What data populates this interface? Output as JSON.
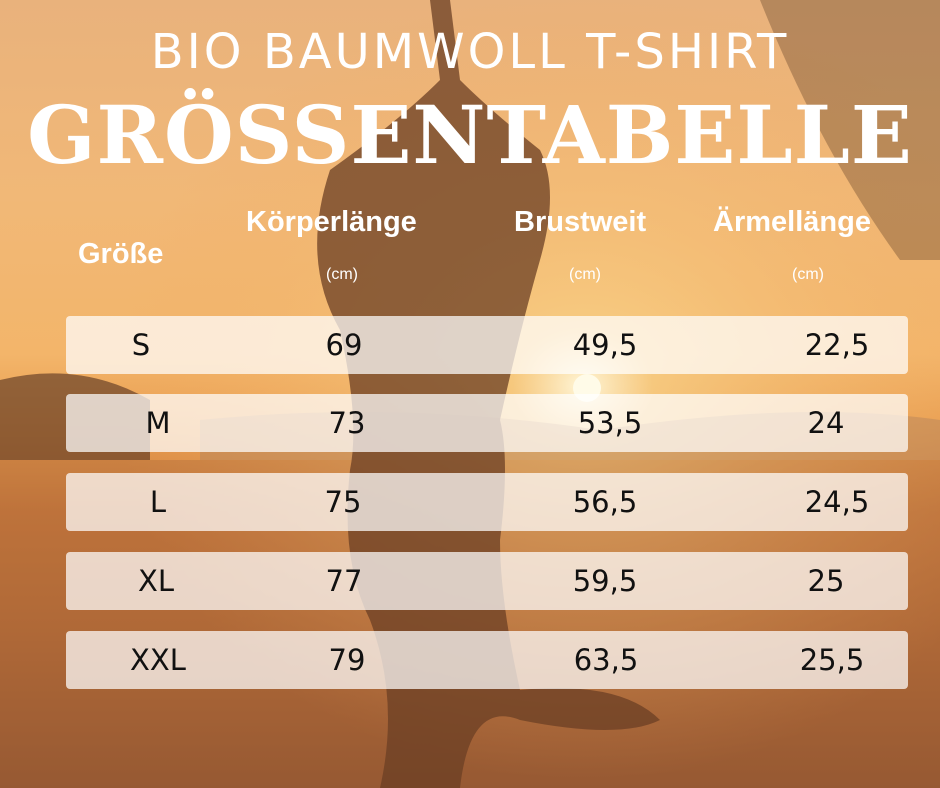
{
  "title": "BIO BAUMWOLL T-SHIRT",
  "subtitle": "GRÖSSENTABELLE",
  "columns": [
    {
      "label": "Größe",
      "unit": ""
    },
    {
      "label": "Körperlänge",
      "unit": "(cm)"
    },
    {
      "label": "Brustweit",
      "unit": "(cm)"
    },
    {
      "label": "Ärmellänge",
      "unit": "(cm)"
    }
  ],
  "rows": [
    [
      "S",
      "69",
      "49,5",
      "22,5"
    ],
    [
      "M",
      "73",
      "53,5",
      "24"
    ],
    [
      "L",
      "75",
      "56,5",
      "24,5"
    ],
    [
      "XL",
      "77",
      "59,5",
      "25"
    ],
    [
      "XXL",
      "79",
      "63,5",
      "25,5"
    ]
  ]
}
